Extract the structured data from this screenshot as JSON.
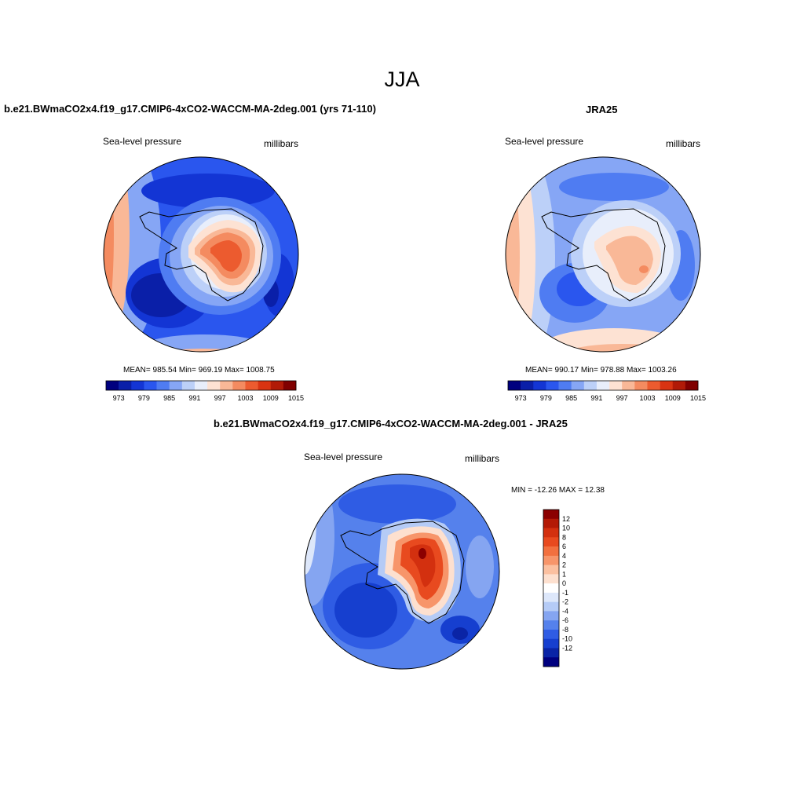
{
  "figure": {
    "title": "JJA"
  },
  "panels": [
    {
      "title": "b.e21.BWmaCO2x4.f19_g17.CMIP6-4xCO2-WACCM-MA-2deg.001 (yrs 71-110)",
      "left_label": "Sea-level pressure",
      "right_label": "millibars",
      "stats": "MEAN= 985.54  Min= 969.19  Max= 1008.75"
    },
    {
      "title": "JRA25",
      "left_label": "Sea-level pressure",
      "right_label": "millibars",
      "stats": "MEAN= 990.17  Min= 978.88  Max= 1003.26"
    },
    {
      "title": "b.e21.BWmaCO2x4.f19_g17.CMIP6-4xCO2-WACCM-MA-2deg.001 - JRA25",
      "left_label": "Sea-level pressure",
      "right_label": "millibars",
      "stats": "MIN = -12.26 MAX =  12.38"
    }
  ],
  "colorbar_abs": {
    "tick_labels": [
      "973",
      "979",
      "985",
      "991",
      "997",
      "1003",
      "1009",
      "1015"
    ],
    "colors": [
      "#00007f",
      "#0a1fa8",
      "#1335d4",
      "#2a56ee",
      "#4f7cf2",
      "#86a6f5",
      "#bcd0f8",
      "#e8eefb",
      "#fde2d3",
      "#f9b897",
      "#f48b60",
      "#ec5b2f",
      "#d93412",
      "#b11a07",
      "#800000"
    ]
  },
  "colorbar_diff": {
    "tick_labels": [
      "12",
      "10",
      "8",
      "6",
      "4",
      "2",
      "1",
      "0",
      "-1",
      "-2",
      "-4",
      "-6",
      "-8",
      "-10",
      "-12"
    ],
    "colors": [
      "#8b0000",
      "#b31a06",
      "#d3300f",
      "#e84a1f",
      "#f2703f",
      "#f7956a",
      "#fbc0a0",
      "#fde0cf",
      "#ffffff",
      "#dde7fa",
      "#b5cbf6",
      "#85a5f1",
      "#5581ec",
      "#2f5ce4",
      "#163fcf",
      "#0a24a6",
      "#00007f"
    ]
  },
  "chart_data": [
    {
      "type": "heatmap",
      "projection": "south-polar-stereographic",
      "variable": "Sea-level pressure",
      "units": "millibars",
      "mean": 985.54,
      "min": 969.19,
      "max": 1008.75,
      "levels": [
        973,
        976,
        979,
        982,
        985,
        988,
        991,
        994,
        997,
        1000,
        1003,
        1006,
        1009,
        1012,
        1015
      ]
    },
    {
      "type": "heatmap",
      "projection": "south-polar-stereographic",
      "variable": "Sea-level pressure",
      "units": "millibars",
      "mean": 990.17,
      "min": 978.88,
      "max": 1003.26,
      "levels": [
        973,
        976,
        979,
        982,
        985,
        988,
        991,
        994,
        997,
        1000,
        1003,
        1006,
        1009,
        1012,
        1015
      ]
    },
    {
      "type": "heatmap",
      "projection": "south-polar-stereographic",
      "variable": "Sea-level pressure",
      "units": "millibars",
      "min": -12.26,
      "max": 12.38,
      "levels": [
        -12,
        -10,
        -8,
        -6,
        -4,
        -2,
        -1,
        0,
        1,
        2,
        4,
        6,
        8,
        10,
        12
      ]
    }
  ]
}
